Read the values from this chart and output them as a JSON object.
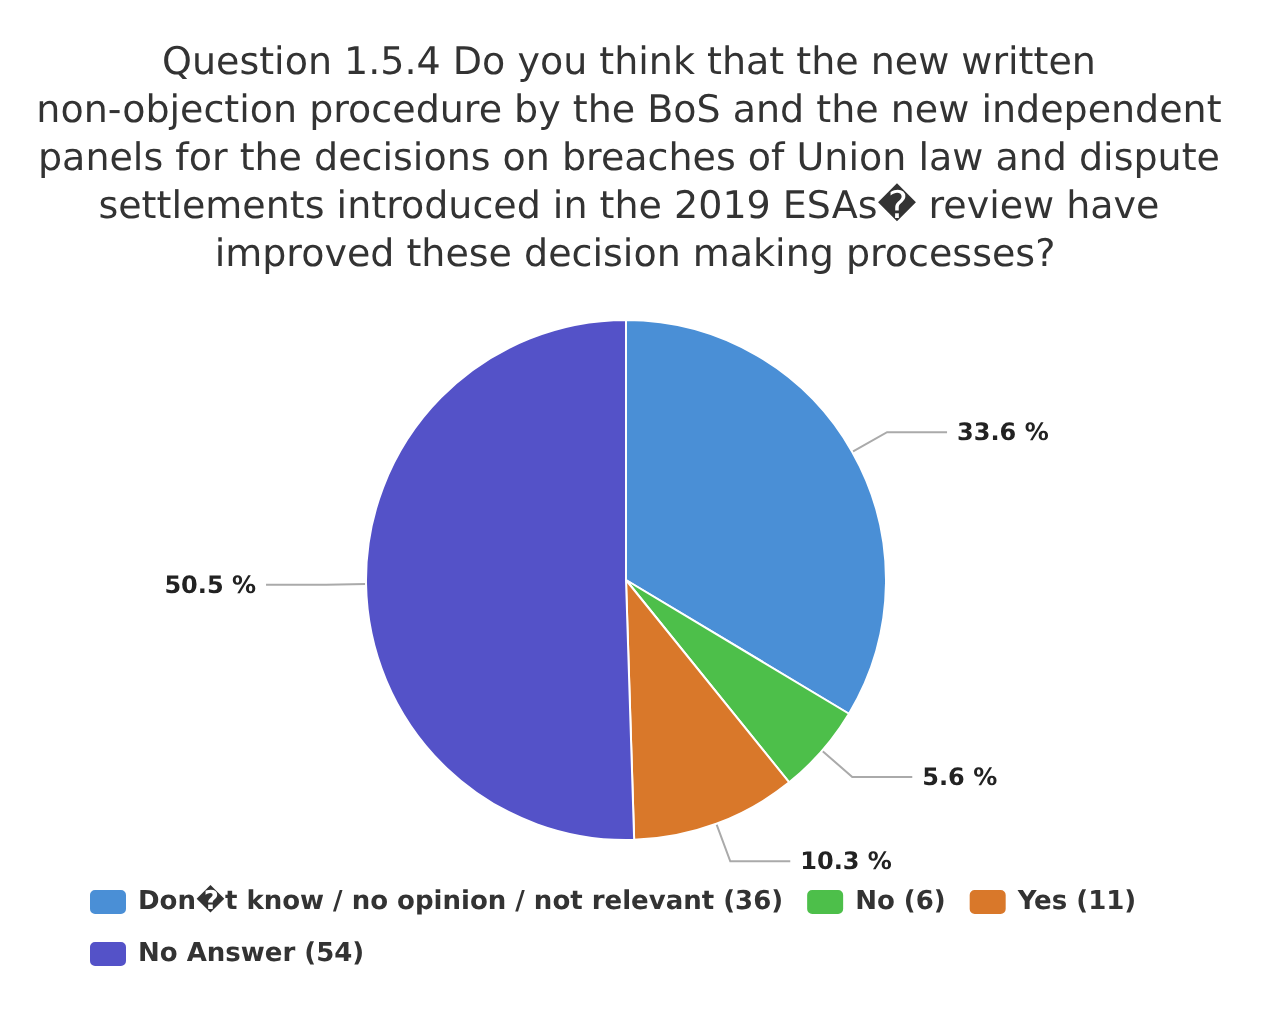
{
  "chart_data": {
    "type": "pie",
    "title": "Question 1.5.4 Do you think that the new written non-objection procedure by the BoS and the new independent panels for the decisions on breaches of Union law and dispute settlements introduced in the 2019 ESAs� review have improved these decision making processes?",
    "categories": [
      "Don�t know / no opinion / not relevant (36)",
      "No (6)",
      "Yes (11)",
      "No Answer (54)"
    ],
    "values": [
      33.6,
      5.6,
      10.3,
      50.5
    ],
    "value_labels": [
      "33.6 %",
      "5.6 %",
      "10.3 %",
      "50.5 %"
    ],
    "colors": [
      "#4a8fd6",
      "#4dbf4a",
      "#d9782a",
      "#5452c8"
    ],
    "legend": "bottom"
  }
}
